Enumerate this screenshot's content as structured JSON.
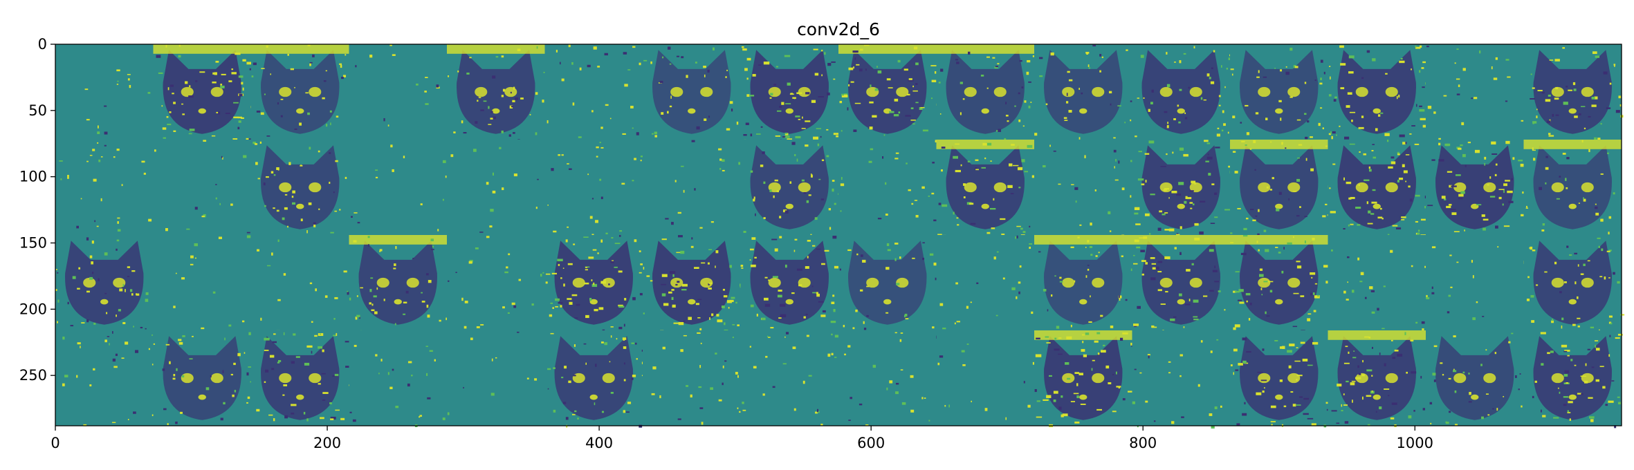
{
  "chart_data": {
    "type": "heatmap",
    "title": "conv2d_6",
    "xlabel": "",
    "ylabel": "",
    "xlim": [
      0,
      1152
    ],
    "ylim": [
      288,
      0
    ],
    "x_ticks": [
      0,
      200,
      400,
      600,
      800,
      1000
    ],
    "y_ticks": [
      0,
      50,
      100,
      150,
      200,
      250
    ],
    "grid": false,
    "layout": {
      "rows": 4,
      "cols": 16,
      "tile_size": 72
    },
    "colormap": "viridis",
    "colors": {
      "dark": "#3b2f72",
      "mid": "#2e8a8a",
      "bright": "#d8e22e",
      "green": "#5fbf57"
    },
    "tiles": [
      [
        {
          "fill": 0.06,
          "cat": 0.1
        },
        {
          "fill": 0.55,
          "cat": 0.95
        },
        {
          "fill": 0.3,
          "cat": 0.6
        },
        {
          "fill": 0.04,
          "cat": 0.02
        },
        {
          "fill": 0.35,
          "cat": 0.8
        },
        {
          "fill": 0.2,
          "cat": 0.5
        },
        {
          "fill": 0.25,
          "cat": 0.55
        },
        {
          "fill": 0.6,
          "cat": 0.95
        },
        {
          "fill": 0.55,
          "cat": 0.9
        },
        {
          "fill": 0.3,
          "cat": 0.65
        },
        {
          "fill": 0.25,
          "cat": 0.6
        },
        {
          "fill": 0.4,
          "cat": 0.85
        },
        {
          "fill": 0.3,
          "cat": 0.6
        },
        {
          "fill": 0.5,
          "cat": 0.9
        },
        {
          "fill": 0.15,
          "cat": 0.35
        },
        {
          "fill": 0.45,
          "cat": 0.85
        }
      ],
      [
        {
          "fill": 0.2,
          "cat": 0.45
        },
        {
          "fill": 0.08,
          "cat": 0.15
        },
        {
          "fill": 0.35,
          "cat": 0.7
        },
        {
          "fill": 0.06,
          "cat": 0.1
        },
        {
          "fill": 0.05,
          "cat": 0.1
        },
        {
          "fill": 0.2,
          "cat": 0.5
        },
        {
          "fill": 0.1,
          "cat": 0.25
        },
        {
          "fill": 0.35,
          "cat": 0.75
        },
        {
          "fill": 0.15,
          "cat": 0.3
        },
        {
          "fill": 0.45,
          "cat": 0.85
        },
        {
          "fill": 0.15,
          "cat": 0.3
        },
        {
          "fill": 0.55,
          "cat": 0.9
        },
        {
          "fill": 0.35,
          "cat": 0.75
        },
        {
          "fill": 0.6,
          "cat": 0.95
        },
        {
          "fill": 0.55,
          "cat": 0.95
        },
        {
          "fill": 0.25,
          "cat": 0.6
        }
      ],
      [
        {
          "fill": 0.4,
          "cat": 0.85
        },
        {
          "fill": 0.06,
          "cat": 0.1
        },
        {
          "fill": 0.1,
          "cat": 0.25
        },
        {
          "fill": 0.35,
          "cat": 0.8
        },
        {
          "fill": 0.15,
          "cat": 0.45
        },
        {
          "fill": 0.6,
          "cat": 0.95
        },
        {
          "fill": 0.6,
          "cat": 0.95
        },
        {
          "fill": 0.5,
          "cat": 0.9
        },
        {
          "fill": 0.25,
          "cat": 0.55
        },
        {
          "fill": 0.15,
          "cat": 0.35
        },
        {
          "fill": 0.25,
          "cat": 0.55
        },
        {
          "fill": 0.45,
          "cat": 0.85
        },
        {
          "fill": 0.5,
          "cat": 0.9
        },
        {
          "fill": 0.15,
          "cat": 0.3
        },
        {
          "fill": 0.1,
          "cat": 0.3
        },
        {
          "fill": 0.4,
          "cat": 0.8
        }
      ],
      [
        {
          "fill": 0.2,
          "cat": 0.45
        },
        {
          "fill": 0.3,
          "cat": 0.65
        },
        {
          "fill": 0.45,
          "cat": 0.85
        },
        {
          "fill": 0.15,
          "cat": 0.4
        },
        {
          "fill": 0.01,
          "cat": 0.0
        },
        {
          "fill": 0.4,
          "cat": 0.8
        },
        {
          "fill": 0.2,
          "cat": 0.5
        },
        {
          "fill": 0.2,
          "cat": 0.5
        },
        {
          "fill": 0.15,
          "cat": 0.4
        },
        {
          "fill": 0.05,
          "cat": 0.1
        },
        {
          "fill": 0.55,
          "cat": 0.95
        },
        {
          "fill": 0.15,
          "cat": 0.35
        },
        {
          "fill": 0.45,
          "cat": 0.85
        },
        {
          "fill": 0.5,
          "cat": 0.9
        },
        {
          "fill": 0.3,
          "cat": 0.65
        },
        {
          "fill": 0.5,
          "cat": 0.9
        }
      ]
    ]
  }
}
